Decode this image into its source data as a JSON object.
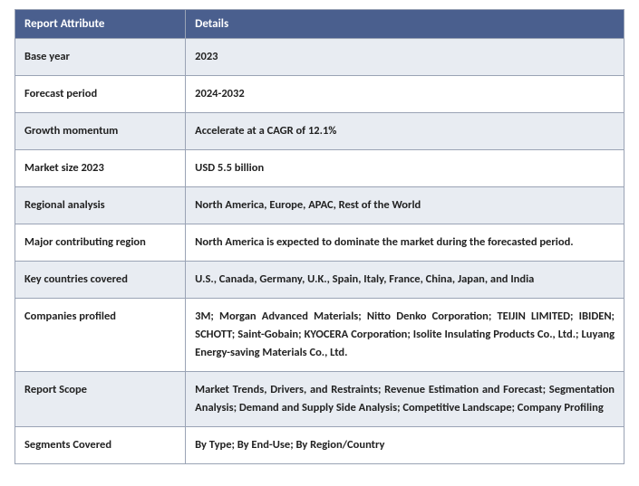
{
  "table": {
    "header_bg": "#4a5f8e",
    "header_color": "#ffffff",
    "alt_row_bg": "#e8ecf2",
    "border_color": "#9aa3b5",
    "columns": {
      "attribute": "Report Attribute",
      "details": "Details"
    },
    "rows": [
      {
        "attribute": "Base year",
        "details": "2023",
        "alt": true
      },
      {
        "attribute": "Forecast period",
        "details": "2024-2032",
        "alt": false
      },
      {
        "attribute": "Growth momentum",
        "details": "Accelerate at a CAGR of 12.1%",
        "alt": true
      },
      {
        "attribute": "Market size 2023",
        "details": "USD 5.5 billion",
        "alt": false
      },
      {
        "attribute": "Regional analysis",
        "details": "North America, Europe, APAC, Rest of the World",
        "alt": true
      },
      {
        "attribute": "Major contributing region",
        "details": "North America is expected to dominate the market during the forecasted period.",
        "alt": false
      },
      {
        "attribute": "Key countries covered",
        "details": "U.S., Canada, Germany, U.K., Spain, Italy, France, China, Japan, and India",
        "alt": true
      },
      {
        "attribute": "Companies profiled",
        "details": "3M; Morgan Advanced Materials; Nitto Denko Corporation; TEIJIN LIMITED; IBIDEN; SCHOTT; Saint-Gobain; KYOCERA Corporation; Isolite Insulating Products Co., Ltd.; Luyang Energy-saving Materials Co., Ltd.",
        "alt": false,
        "justify": true
      },
      {
        "attribute": "Report Scope",
        "details": "Market Trends, Drivers, and Restraints; Revenue Estimation and Forecast; Segmentation Analysis; Demand and Supply Side Analysis; Competitive Landscape; Company Profiling",
        "alt": true,
        "justify": true
      },
      {
        "attribute": "Segments Covered",
        "details": "By Type; By End-Use; By Region/Country",
        "alt": false
      }
    ]
  }
}
